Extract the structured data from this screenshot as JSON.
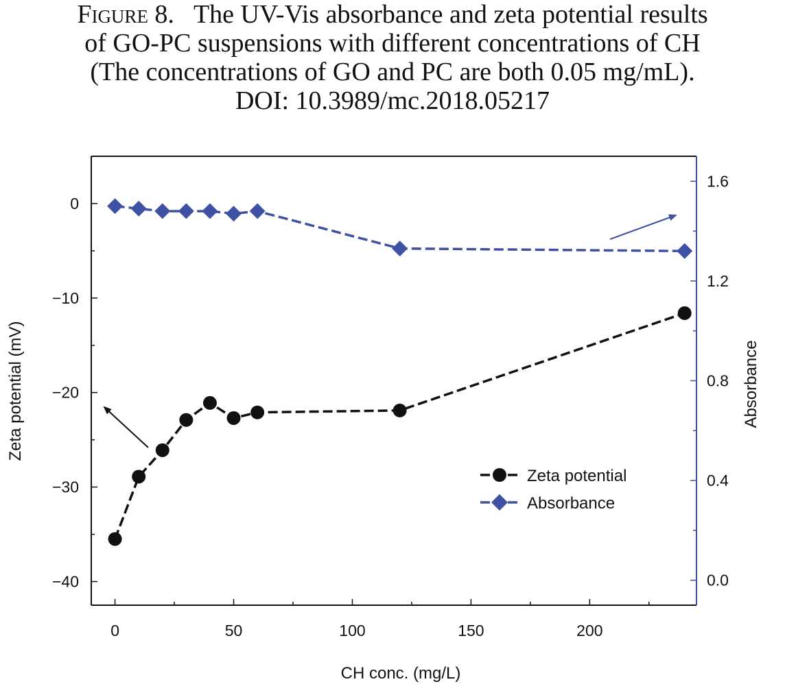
{
  "figure": {
    "label": "Figure 8.",
    "caption_line1": "The UV-Vis absorbance and zeta potential results",
    "caption_line2": "of GO-PC suspensions with different concentrations of CH",
    "caption_line3": "(The concentrations of GO and PC are both 0.05 mg/mL).",
    "caption_line4": "DOI: 10.3989/mc.2018.05217"
  },
  "colors": {
    "zeta": "#111111",
    "absorbance": "#3f51a3",
    "axis": "#111111",
    "right_axis": "#3f51a3"
  },
  "chart_data": {
    "type": "line",
    "title": "",
    "xlabel": "CH conc. (mg/L)",
    "ylabel": "Zeta potential (mV)",
    "y2label": "Absorbance",
    "xlim": [
      -10,
      245
    ],
    "ylim": [
      -42.5,
      5
    ],
    "y2lim": [
      -0.1,
      1.7
    ],
    "x_ticks": [
      0,
      50,
      100,
      150,
      200
    ],
    "y_ticks": [
      0,
      -10,
      -20,
      -30,
      -40
    ],
    "y2_ticks": [
      "0.0",
      "0.4",
      "0.8",
      "1.2",
      "1.6"
    ],
    "y_tick_labels": [
      "0",
      "−10",
      "−20",
      "−30",
      "−40"
    ],
    "x": [
      0,
      10,
      20,
      30,
      40,
      50,
      60,
      120,
      240
    ],
    "series": [
      {
        "name": "Zeta potential",
        "axis": "left",
        "marker": "circle",
        "values": [
          -35.5,
          -28.9,
          -26.1,
          -22.9,
          -21.1,
          -22.7,
          -22.1,
          -21.9,
          -11.6
        ]
      },
      {
        "name": "Absorbance",
        "axis": "right",
        "marker": "diamond",
        "values": [
          1.5,
          1.49,
          1.48,
          1.48,
          1.48,
          1.47,
          1.48,
          1.33,
          1.32
        ]
      }
    ],
    "legend_position": "lower-right",
    "annotations": [
      {
        "type": "arrow",
        "points_to": "left axis",
        "near_series": "Zeta potential"
      },
      {
        "type": "arrow",
        "points_to": "right axis",
        "near_series": "Absorbance"
      }
    ]
  }
}
